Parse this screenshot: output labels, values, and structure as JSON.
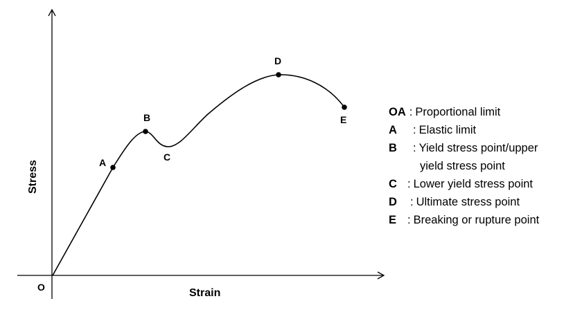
{
  "diagram": {
    "axis_labels": {
      "x": "Strain",
      "y": "Stress",
      "origin": "O"
    },
    "points": [
      {
        "id": "A",
        "label": "A"
      },
      {
        "id": "B",
        "label": "B"
      },
      {
        "id": "C",
        "label": "C"
      },
      {
        "id": "D",
        "label": "D"
      },
      {
        "id": "E",
        "label": "E"
      }
    ]
  },
  "legend": {
    "items": [
      {
        "key": "OA",
        "text": "Proportional limit"
      },
      {
        "key": "A",
        "text": "Elastic limit"
      },
      {
        "key": "B",
        "text": "Yield stress point/upper"
      },
      {
        "key": "",
        "text": "yield stress point"
      },
      {
        "key": "C",
        "text": "Lower yield stress point"
      },
      {
        "key": "D",
        "text": "Ultimate stress point"
      },
      {
        "key": "E",
        "text": "Breaking or rupture point"
      }
    ]
  }
}
